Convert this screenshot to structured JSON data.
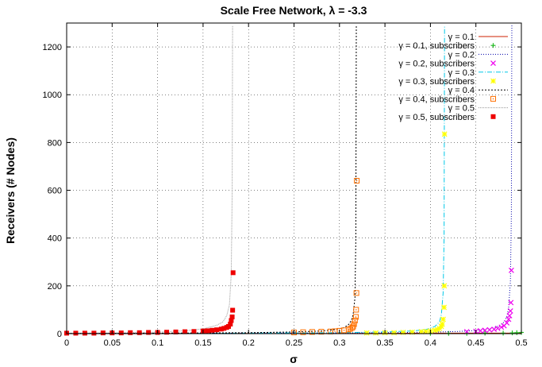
{
  "chart_data": {
    "type": "line",
    "title": "Scale Free Network, λ = -3.3",
    "xlabel": "σ",
    "ylabel": "Receivers (# Nodes)",
    "xlim": [
      0,
      0.5
    ],
    "ylim": [
      0,
      1300
    ],
    "x_ticks": [
      0,
      0.05,
      0.1,
      0.15,
      0.2,
      0.25,
      0.3,
      0.35,
      0.4,
      0.45,
      0.5
    ],
    "x_tick_labels": [
      "0",
      "0.05",
      "0.1",
      "0.15",
      "0.2",
      "0.25",
      "0.3",
      "0.35",
      "0.4",
      "0.45",
      "0.5"
    ],
    "y_ticks": [
      0,
      200,
      400,
      600,
      800,
      1000,
      1200
    ],
    "y_tick_labels": [
      "0",
      "200",
      "400",
      "600",
      "800",
      "1000",
      "1200"
    ],
    "grid": true,
    "legend_position": "top-right",
    "series": [
      {
        "name": "γ = 0.1",
        "style": "line",
        "dash": "solid",
        "color": "#cc2200",
        "x": [
          0,
          0.1,
          0.2,
          0.3,
          0.4,
          0.45,
          0.5
        ],
        "y": [
          1,
          1,
          1,
          1,
          2,
          2,
          2
        ]
      },
      {
        "name": "γ = 0.1, subscribers",
        "style": "points",
        "marker": "plus",
        "color": "#22bb22",
        "x": [
          0.4,
          0.42,
          0.44,
          0.46,
          0.48,
          0.49,
          0.495,
          0.5
        ],
        "y": [
          1,
          1,
          1,
          2,
          2,
          3,
          4,
          5
        ]
      },
      {
        "name": "γ = 0.2",
        "style": "line",
        "dash": "1,2",
        "color": "#0000aa",
        "x": [
          0,
          0.1,
          0.2,
          0.3,
          0.35,
          0.4,
          0.43,
          0.45,
          0.46,
          0.47,
          0.475,
          0.48,
          0.484,
          0.486,
          0.488,
          0.489,
          0.4895
        ],
        "y": [
          1,
          1,
          2,
          3,
          4,
          6,
          9,
          13,
          17,
          25,
          32,
          45,
          70,
          110,
          220,
          500,
          1290
        ]
      },
      {
        "name": "γ = 0.2, subscribers",
        "style": "points",
        "marker": "x",
        "color": "#ee00ee",
        "x": [
          0.44,
          0.45,
          0.455,
          0.46,
          0.465,
          0.47,
          0.474,
          0.478,
          0.481,
          0.484,
          0.486,
          0.487,
          0.488,
          0.4885,
          0.489
        ],
        "y": [
          8,
          10,
          12,
          14,
          16,
          18,
          22,
          27,
          33,
          45,
          60,
          75,
          95,
          130,
          265
        ]
      },
      {
        "name": "γ = 0.3",
        "style": "line",
        "dash": "6,2,1,2",
        "color": "#00c8e8",
        "x": [
          0,
          0.1,
          0.2,
          0.3,
          0.35,
          0.38,
          0.395,
          0.405,
          0.41,
          0.412,
          0.414,
          0.415,
          0.4155
        ],
        "y": [
          1,
          1,
          2,
          4,
          7,
          11,
          17,
          30,
          50,
          80,
          170,
          400,
          1290
        ]
      },
      {
        "name": "γ = 0.3, subscribers",
        "style": "points",
        "marker": "star",
        "color": "#ffff00",
        "x": [
          0.33,
          0.34,
          0.35,
          0.36,
          0.37,
          0.38,
          0.39,
          0.395,
          0.4,
          0.405,
          0.408,
          0.41,
          0.412,
          0.413,
          0.414,
          0.415,
          0.4152,
          0.4155
        ],
        "y": [
          3,
          3,
          4,
          4,
          5,
          6,
          8,
          9,
          11,
          14,
          17,
          22,
          30,
          40,
          60,
          110,
          200,
          835
        ]
      },
      {
        "name": "γ = 0.4",
        "style": "line",
        "dash": "2,2",
        "color": "#000000",
        "x": [
          0,
          0.1,
          0.2,
          0.25,
          0.28,
          0.295,
          0.305,
          0.31,
          0.313,
          0.315,
          0.317,
          0.318,
          0.3185
        ],
        "y": [
          1,
          2,
          4,
          7,
          11,
          17,
          25,
          38,
          55,
          80,
          150,
          400,
          1290
        ]
      },
      {
        "name": "γ = 0.4, subscribers",
        "style": "points",
        "marker": "square-dot",
        "color": "#ff7000",
        "x": [
          0.25,
          0.26,
          0.27,
          0.28,
          0.29,
          0.295,
          0.3,
          0.305,
          0.31,
          0.312,
          0.314,
          0.315,
          0.316,
          0.317,
          0.318,
          0.3183,
          0.3186,
          0.319
        ],
        "y": [
          5,
          6,
          7,
          8,
          9,
          10,
          12,
          14,
          17,
          20,
          25,
          30,
          40,
          55,
          70,
          100,
          170,
          640
        ]
      },
      {
        "name": "γ = 0.5",
        "style": "line",
        "dash": "1,1",
        "color": "#999999",
        "x": [
          0,
          0.05,
          0.1,
          0.13,
          0.15,
          0.165,
          0.172,
          0.176,
          0.179,
          0.181,
          0.182,
          0.1825
        ],
        "y": [
          2,
          3,
          6,
          12,
          20,
          35,
          50,
          75,
          120,
          250,
          600,
          1290
        ]
      },
      {
        "name": "γ = 0.5, subscribers",
        "style": "points",
        "marker": "filled-square",
        "color": "#ee0000",
        "x": [
          0,
          0.01,
          0.02,
          0.03,
          0.04,
          0.05,
          0.06,
          0.07,
          0.08,
          0.09,
          0.1,
          0.11,
          0.12,
          0.13,
          0.14,
          0.15,
          0.155,
          0.16,
          0.165,
          0.17,
          0.173,
          0.176,
          0.178,
          0.18,
          0.181,
          0.182,
          0.1825,
          0.183
        ],
        "y": [
          2,
          2,
          2,
          2,
          3,
          3,
          3,
          4,
          4,
          5,
          5,
          6,
          7,
          8,
          9,
          11,
          12,
          14,
          16,
          19,
          22,
          26,
          30,
          40,
          55,
          70,
          98,
          255
        ]
      }
    ]
  }
}
